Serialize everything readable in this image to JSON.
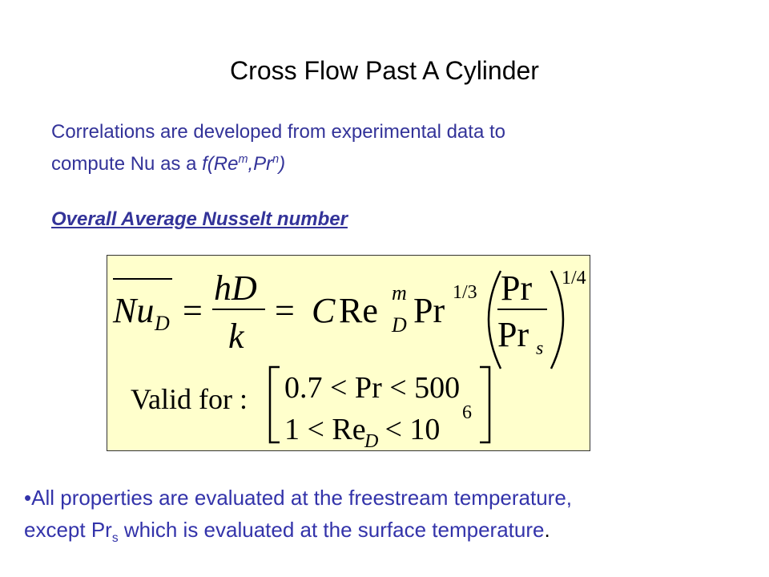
{
  "title": "Cross Flow Past A Cylinder",
  "intro": {
    "line1": "Correlations are developed from experimental data to",
    "line2": "compute Nu as a ",
    "formula": [
      "f(Re",
      "m",
      ",Pr",
      "n",
      ")"
    ]
  },
  "heading": "Overall Average Nusselt number",
  "equation": {
    "lhs": [
      "Nu",
      "D"
    ],
    "eq1": "=",
    "numerator": "hD",
    "denominator": "k",
    "eq2": "=",
    "coef": "C",
    "re": [
      "Re",
      "m",
      "D"
    ],
    "pr": [
      "Pr",
      "1/3"
    ],
    "ratio_top": "Pr",
    "ratio_bottom": [
      "Pr",
      "s"
    ],
    "exponent": "1/4",
    "valid_label": "Valid for :",
    "valid_row1": "0.7 < Pr < 500",
    "valid_row2": [
      "1 < Re",
      "D",
      " < 10",
      "6"
    ]
  },
  "bullet": {
    "marker": "•",
    "line1": "All properties are evaluated at the freestream temperature,",
    "line2": [
      "except Pr",
      "s",
      " which is evaluated at the surface temperature",
      "."
    ]
  }
}
